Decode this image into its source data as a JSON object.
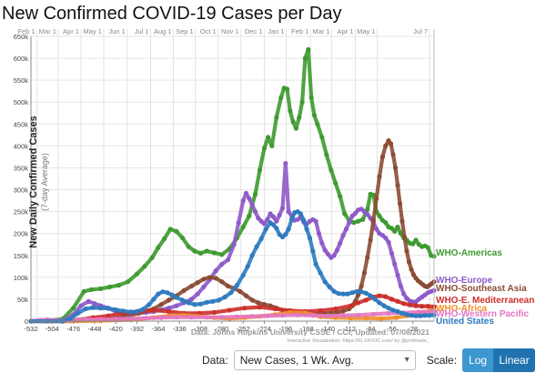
{
  "page": {
    "title": "New Confirmed COVID-19 Cases per Day"
  },
  "controls": {
    "data_label": "Data:",
    "data_value": "New Cases, 1 Wk. Avg.",
    "scale_label": "Scale:",
    "log_label": "Log",
    "linear_label": "Linear",
    "active_scale": "Linear"
  },
  "chart_data": {
    "type": "line",
    "title": "New Confirmed COVID-19 Cases per Day",
    "ylabel": "New Daily Confirmed Cases",
    "ylabel_sub": "(7-day Average)",
    "xlim": [
      -532,
      0
    ],
    "ylim": [
      0,
      650000
    ],
    "y_ticks": [
      "0",
      "50k",
      "100k",
      "150k",
      "200k",
      "250k",
      "300k",
      "350k",
      "400k",
      "450k",
      "500k",
      "550k",
      "600k",
      "650k"
    ],
    "x_ticks": [
      -532,
      -504,
      -476,
      -448,
      -420,
      -392,
      -364,
      -336,
      -308,
      -280,
      -252,
      -224,
      -196,
      -168,
      -140,
      -112,
      -84,
      -56,
      -28
    ],
    "x_tick_labels": [
      "-532",
      "-504",
      "-476",
      "-448",
      "-420",
      "-392",
      "-364",
      "-336",
      "-308",
      "-280",
      "-252",
      "-224",
      "-196",
      "-168",
      "-140",
      "-112",
      "-84",
      "-56",
      "-28"
    ],
    "month_labels": [
      {
        "label": "Feb 1",
        "x": -524
      },
      {
        "label": "Mar 1",
        "x": -496
      },
      {
        "label": "Apr 1",
        "x": -466
      },
      {
        "label": "May 1",
        "x": -436
      },
      {
        "label": "Jun 1",
        "x": -405
      },
      {
        "label": "Jul 1",
        "x": -374
      },
      {
        "label": "Aug 1",
        "x": -344
      },
      {
        "label": "Sep 1",
        "x": -315
      },
      {
        "label": "Oct 1",
        "x": -285
      },
      {
        "label": "Nov 1",
        "x": -255
      },
      {
        "label": "Dec 1",
        "x": -224
      },
      {
        "label": "Jan 1",
        "x": -195
      },
      {
        "label": "Feb 1",
        "x": -163
      },
      {
        "label": "Mar 1",
        "x": -135
      },
      {
        "label": "Apr 1",
        "x": -104
      },
      {
        "label": "May 1",
        "x": -75
      },
      {
        "label": "Jul 7",
        "x": -6
      }
    ],
    "grid": true,
    "source": "Data: Johns Hopkins University CSSE / CCI; Updated: 07/08/2021",
    "credit": "Interactive Visualization: https://91-DIVOC.com/ by @profwade_",
    "series": [
      {
        "name": "WHO-Americas",
        "color": "#3d9a2f",
        "x": [
          -532,
          -510,
          -490,
          -476,
          -462,
          -452,
          -440,
          -428,
          -416,
          -404,
          -392,
          -382,
          -372,
          -364,
          -356,
          -348,
          -340,
          -332,
          -324,
          -316,
          -308,
          -300,
          -290,
          -280,
          -270,
          -260,
          -252,
          -244,
          -236,
          -230,
          -224,
          -219,
          -214,
          -208,
          -202,
          -198,
          -194,
          -190,
          -186,
          -182,
          -178,
          -174,
          -170,
          -166,
          -162,
          -158,
          -154,
          -148,
          -142,
          -136,
          -130,
          -124,
          -118,
          -112,
          -106,
          -100,
          -94,
          -88,
          -84,
          -80,
          -76,
          -72,
          -68,
          -64,
          -60,
          -56,
          -52,
          -48,
          -44,
          -40,
          -36,
          -32,
          -28,
          -24,
          -20,
          -16,
          -12,
          -8,
          -4,
          0
        ],
        "y": [
          0,
          1000,
          5000,
          30000,
          68000,
          72000,
          74000,
          78000,
          82000,
          90000,
          108000,
          125000,
          145000,
          168000,
          188000,
          210000,
          205000,
          190000,
          170000,
          160000,
          155000,
          160000,
          156000,
          152000,
          165000,
          190000,
          215000,
          240000,
          290000,
          345000,
          395000,
          420000,
          400000,
          465000,
          510000,
          532000,
          530000,
          480000,
          455000,
          440000,
          465000,
          500000,
          600000,
          620000,
          510000,
          470000,
          450000,
          420000,
          380000,
          345000,
          315000,
          285000,
          245000,
          230000,
          225000,
          228000,
          232000,
          255000,
          290000,
          288000,
          250000,
          240000,
          230000,
          225000,
          215000,
          212000,
          205000,
          215000,
          200000,
          190000,
          185000,
          178000,
          176000,
          185000,
          175000,
          170000,
          172000,
          168000,
          150000,
          148000
        ]
      },
      {
        "name": "WHO-Europe",
        "color": "#8e5ac8",
        "x": [
          -532,
          -510,
          -490,
          -476,
          -466,
          -456,
          -448,
          -440,
          -430,
          -420,
          -410,
          -400,
          -390,
          -380,
          -370,
          -360,
          -350,
          -340,
          -330,
          -320,
          -312,
          -304,
          -296,
          -288,
          -280,
          -272,
          -264,
          -258,
          -252,
          -248,
          -244,
          -240,
          -236,
          -232,
          -228,
          -224,
          -220,
          -216,
          -212,
          -208,
          -204,
          -200,
          -196,
          -192,
          -188,
          -184,
          -180,
          -176,
          -172,
          -168,
          -164,
          -160,
          -156,
          -152,
          -148,
          -144,
          -140,
          -136,
          -132,
          -128,
          -124,
          -120,
          -116,
          -112,
          -108,
          -104,
          -100,
          -96,
          -92,
          -88,
          -84,
          -80,
          -76,
          -72,
          -68,
          -64,
          -60,
          -56,
          -52,
          -48,
          -44,
          -40,
          -36,
          -32,
          -28,
          -24,
          -20,
          -16,
          -12,
          -8,
          -4,
          0
        ],
        "y": [
          0,
          0,
          1000,
          15000,
          35000,
          45000,
          40000,
          35000,
          30000,
          22000,
          18000,
          17000,
          18000,
          20000,
          22000,
          26000,
          30000,
          35000,
          42000,
          50000,
          62000,
          78000,
          95000,
          115000,
          130000,
          140000,
          175000,
          225000,
          275000,
          292000,
          280000,
          265000,
          250000,
          235000,
          228000,
          222000,
          232000,
          245000,
          238000,
          228000,
          242000,
          258000,
          360000,
          250000,
          240000,
          230000,
          232000,
          238000,
          226000,
          222000,
          228000,
          232000,
          228000,
          200000,
          178000,
          162000,
          153000,
          145000,
          150000,
          162000,
          178000,
          196000,
          210000,
          225000,
          240000,
          246000,
          254000,
          256000,
          250000,
          244000,
          235000,
          225000,
          210000,
          200000,
          196000,
          190000,
          180000,
          155000,
          130000,
          105000,
          80000,
          62000,
          52000,
          46000,
          44000,
          44000,
          50000,
          55000,
          60000,
          65000,
          68000,
          70000
        ]
      },
      {
        "name": "WHO-Southeast Asia",
        "color": "#8b4c34",
        "x": [
          -532,
          -490,
          -470,
          -450,
          -430,
          -410,
          -390,
          -370,
          -360,
          -350,
          -340,
          -330,
          -320,
          -312,
          -304,
          -296,
          -288,
          -280,
          -272,
          -264,
          -256,
          -248,
          -240,
          -232,
          -224,
          -216,
          -208,
          -200,
          -192,
          -184,
          -176,
          -168,
          -160,
          -152,
          -144,
          -136,
          -128,
          -120,
          -112,
          -108,
          -104,
          -100,
          -96,
          -92,
          -88,
          -84,
          -80,
          -76,
          -72,
          -68,
          -64,
          -60,
          -57,
          -54,
          -51,
          -48,
          -45,
          -42,
          -39,
          -36,
          -33,
          -30,
          -27,
          -24,
          -21,
          -18,
          -15,
          -12,
          -9,
          -6,
          -3,
          0
        ],
        "y": [
          0,
          0,
          800,
          2000,
          5000,
          10000,
          18000,
          28000,
          38000,
          48000,
          58000,
          70000,
          80000,
          88000,
          96000,
          100000,
          98000,
          90000,
          80000,
          75000,
          68000,
          58000,
          48000,
          42000,
          38000,
          35000,
          30000,
          25000,
          22000,
          20000,
          18000,
          16000,
          15000,
          16000,
          17000,
          18000,
          20000,
          23000,
          28000,
          35000,
          45000,
          60000,
          80000,
          110000,
          145000,
          185000,
          230000,
          280000,
          330000,
          375000,
          400000,
          412000,
          405000,
          380000,
          350000,
          310000,
          268000,
          228000,
          192000,
          160000,
          135000,
          118000,
          106000,
          98000,
          92000,
          88000,
          84000,
          80000,
          78000,
          82000,
          86000,
          90000
        ]
      },
      {
        "name": "WHO-E. Mediterranean",
        "color": "#cc2f2a",
        "x": [
          -532,
          -490,
          -470,
          -450,
          -430,
          -410,
          -390,
          -370,
          -350,
          -330,
          -310,
          -290,
          -270,
          -250,
          -230,
          -210,
          -190,
          -170,
          -150,
          -130,
          -110,
          -100,
          -90,
          -80,
          -72,
          -64,
          -56,
          -48,
          -40,
          -32,
          -24,
          -16,
          -8,
          0
        ],
        "y": [
          0,
          0,
          3000,
          8000,
          12000,
          18000,
          22000,
          25000,
          22000,
          18000,
          18000,
          20000,
          25000,
          30000,
          32000,
          28000,
          24000,
          22000,
          24000,
          28000,
          35000,
          42000,
          48000,
          55000,
          58000,
          56000,
          50000,
          45000,
          40000,
          37000,
          35000,
          34000,
          34000,
          33000
        ]
      },
      {
        "name": "WHO-Africa",
        "color": "#f28e2b",
        "x": [
          -532,
          -480,
          -440,
          -400,
          -370,
          -350,
          -330,
          -310,
          -290,
          -270,
          -250,
          -230,
          -210,
          -190,
          -170,
          -150,
          -130,
          -110,
          -90,
          -70,
          -50,
          -35,
          -25,
          -15,
          -5,
          0
        ],
        "y": [
          0,
          0,
          1000,
          3000,
          8000,
          12000,
          14000,
          11000,
          8000,
          6000,
          8000,
          11000,
          15000,
          20000,
          19000,
          10000,
          8000,
          7000,
          7000,
          6000,
          8000,
          12000,
          16000,
          20000,
          24000,
          25000
        ]
      },
      {
        "name": "WHO-Western Pacific",
        "color": "#e377c2",
        "x": [
          -532,
          -520,
          -510,
          -500,
          -490,
          -480,
          -460,
          -440,
          -420,
          -400,
          -380,
          -360,
          -340,
          -320,
          -300,
          -280,
          -260,
          -240,
          -220,
          -200,
          -180,
          -160,
          -140,
          -120,
          -100,
          -80,
          -60,
          -40,
          -20,
          0
        ],
        "y": [
          0,
          2000,
          3500,
          2000,
          1000,
          2000,
          4000,
          4000,
          5000,
          6000,
          7000,
          8000,
          9000,
          9000,
          9000,
          9000,
          10000,
          11000,
          12000,
          13000,
          14000,
          13000,
          12000,
          13000,
          14000,
          16000,
          18000,
          19000,
          21000,
          22000
        ]
      },
      {
        "name": "United States",
        "color": "#2e7bbf",
        "x": [
          -532,
          -490,
          -480,
          -470,
          -460,
          -450,
          -440,
          -430,
          -420,
          -410,
          -400,
          -392,
          -384,
          -376,
          -370,
          -364,
          -358,
          -352,
          -346,
          -340,
          -332,
          -324,
          -316,
          -308,
          -300,
          -292,
          -284,
          -276,
          -268,
          -260,
          -252,
          -246,
          -240,
          -234,
          -228,
          -222,
          -216,
          -212,
          -208,
          -204,
          -200,
          -196,
          -192,
          -188,
          -184,
          -180,
          -176,
          -172,
          -168,
          -164,
          -160,
          -156,
          -150,
          -144,
          -138,
          -132,
          -126,
          -120,
          -114,
          -108,
          -102,
          -96,
          -90,
          -84,
          -78,
          -72,
          -66,
          -60,
          -54,
          -48,
          -42,
          -36,
          -30,
          -24,
          -18,
          -12,
          -6,
          0
        ],
        "y": [
          0,
          0,
          5000,
          18000,
          28000,
          31000,
          30000,
          29000,
          26000,
          23000,
          21000,
          22000,
          27000,
          38000,
          50000,
          62000,
          67000,
          65000,
          60000,
          54000,
          48000,
          42000,
          38000,
          39000,
          43000,
          45000,
          48000,
          55000,
          65000,
          82000,
          105000,
          125000,
          150000,
          170000,
          188000,
          210000,
          225000,
          220000,
          212000,
          198000,
          192000,
          198000,
          210000,
          232000,
          248000,
          250000,
          245000,
          230000,
          210000,
          190000,
          160000,
          130000,
          110000,
          90000,
          78000,
          68000,
          63000,
          62000,
          62000,
          65000,
          68000,
          67000,
          64000,
          58000,
          50000,
          42000,
          35000,
          30000,
          25000,
          22000,
          18000,
          15000,
          13000,
          12000,
          12000,
          13000,
          13000,
          14000
        ]
      }
    ],
    "end_labels": [
      {
        "name": "WHO-Americas",
        "color": "#3d9a2f"
      },
      {
        "name": "WHO-Europe",
        "color": "#8e5ac8"
      },
      {
        "name": "WHO-Southeast Asia",
        "color": "#8b4c34"
      },
      {
        "name": "WHO-E. Mediterranean",
        "color": "#cc2f2a"
      },
      {
        "name": "WHO-Africa",
        "color": "#f28e2b"
      },
      {
        "name": "WHO-Western Pacific",
        "color": "#e377c2"
      },
      {
        "name": "United States",
        "color": "#2e7bbf"
      }
    ]
  }
}
